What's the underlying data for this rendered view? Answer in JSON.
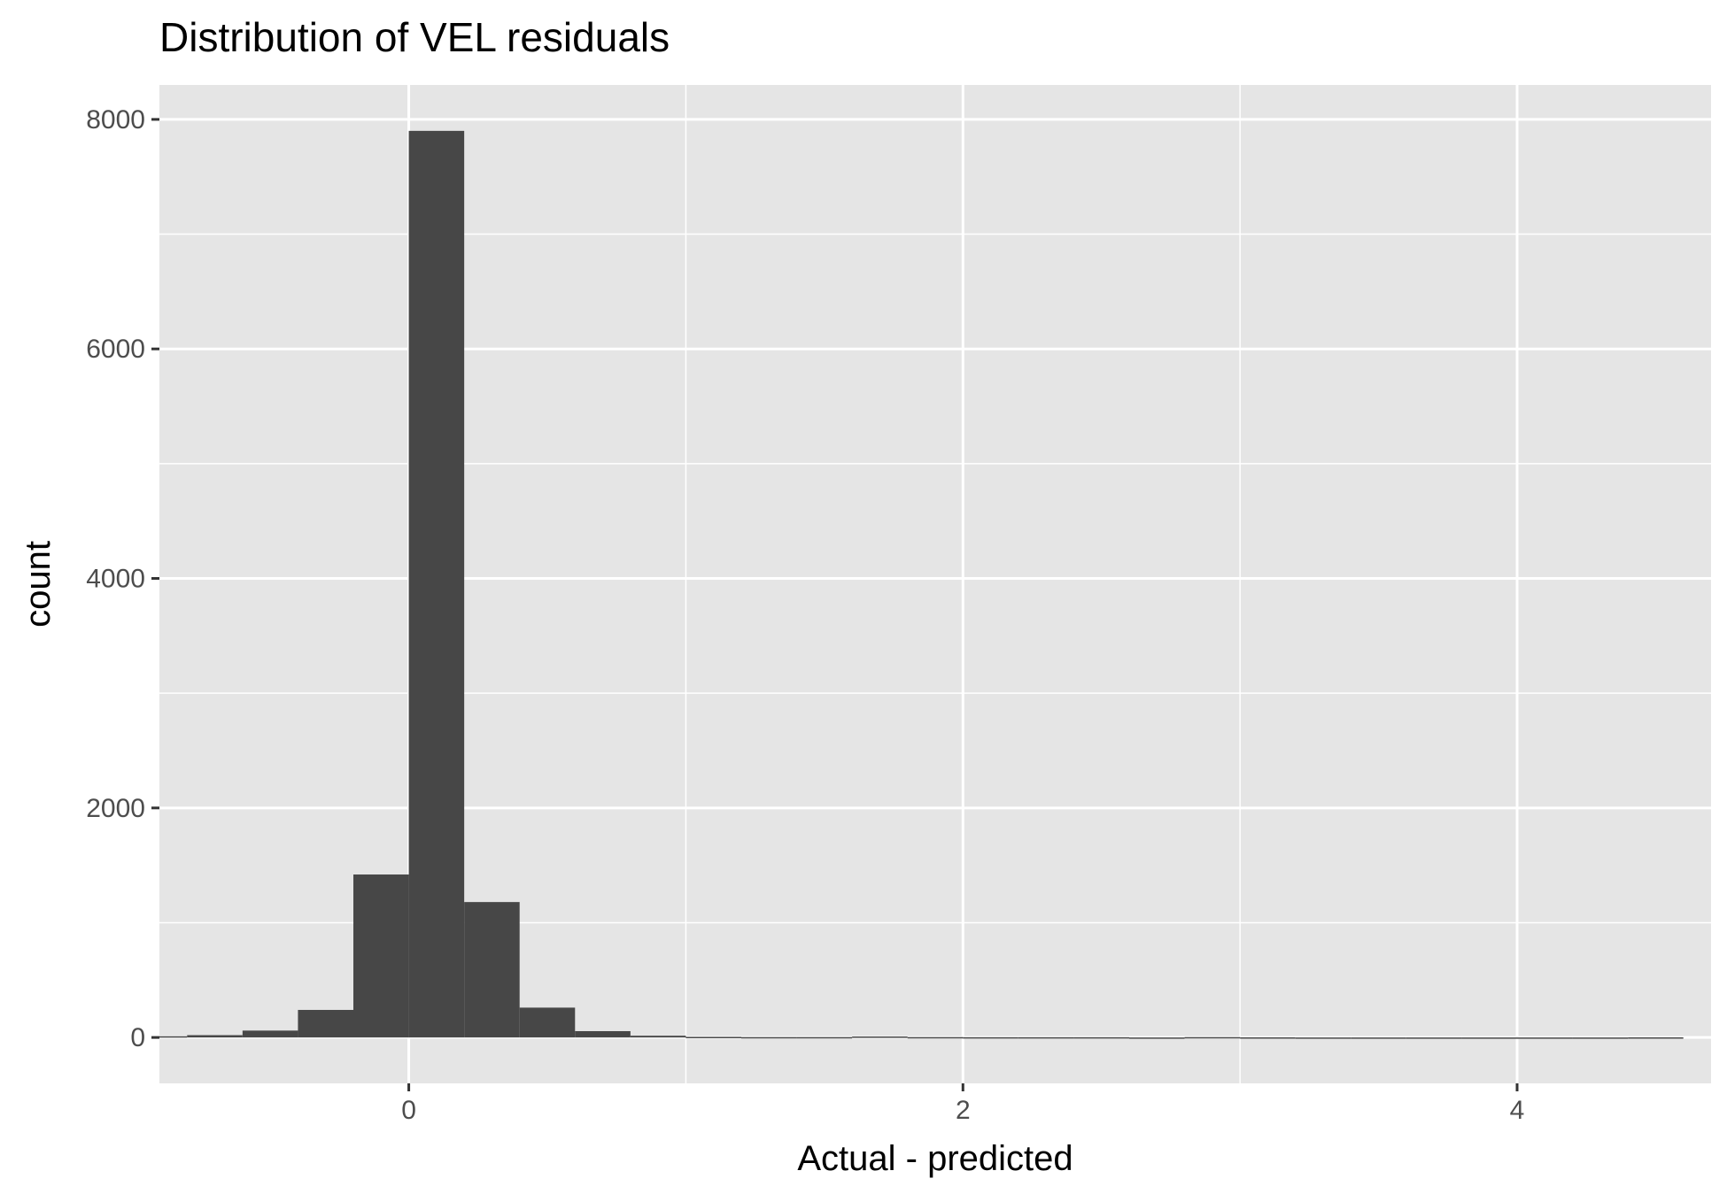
{
  "chart_data": {
    "type": "bar",
    "title": "Distribution of VEL residuals",
    "xlabel": "Actual - predicted",
    "ylabel": "count",
    "xlim": [
      -0.9,
      4.7
    ],
    "ylim": [
      -400,
      8300
    ],
    "x_ticks": [
      0,
      2,
      4
    ],
    "y_ticks": [
      0,
      2000,
      4000,
      6000,
      8000
    ],
    "x_minor_ticks": [
      -1,
      1,
      3
    ],
    "y_minor_ticks": [
      1000,
      3000,
      5000,
      7000
    ],
    "grid": true,
    "bin_width": 0.2,
    "bins": [
      {
        "x": -1.5,
        "count": 0
      },
      {
        "x": -1.3,
        "count": 0
      },
      {
        "x": -1.1,
        "count": 5
      },
      {
        "x": -0.9,
        "count": 10
      },
      {
        "x": -0.7,
        "count": 20
      },
      {
        "x": -0.5,
        "count": 60
      },
      {
        "x": -0.3,
        "count": 240
      },
      {
        "x": -0.1,
        "count": 1420
      },
      {
        "x": 0.1,
        "count": 7900
      },
      {
        "x": 0.3,
        "count": 1180
      },
      {
        "x": 0.5,
        "count": 260
      },
      {
        "x": 0.7,
        "count": 55
      },
      {
        "x": 0.9,
        "count": 15
      },
      {
        "x": 1.1,
        "count": 5
      },
      {
        "x": 1.3,
        "count": 3
      },
      {
        "x": 1.5,
        "count": 3
      },
      {
        "x": 1.7,
        "count": 8
      },
      {
        "x": 1.9,
        "count": 3
      },
      {
        "x": 2.1,
        "count": 2
      },
      {
        "x": 2.3,
        "count": 2
      },
      {
        "x": 2.5,
        "count": 2
      },
      {
        "x": 2.7,
        "count": 0
      },
      {
        "x": 2.9,
        "count": 3
      },
      {
        "x": 3.1,
        "count": 1
      },
      {
        "x": 3.3,
        "count": 0
      },
      {
        "x": 3.5,
        "count": 0
      },
      {
        "x": 3.7,
        "count": 0
      },
      {
        "x": 3.9,
        "count": 0
      },
      {
        "x": 4.1,
        "count": 0
      },
      {
        "x": 4.3,
        "count": 0
      },
      {
        "x": 4.5,
        "count": 1
      }
    ],
    "colors": {
      "panel": "#e5e5e5",
      "grid": "#ffffff",
      "bar": "#474747"
    }
  }
}
